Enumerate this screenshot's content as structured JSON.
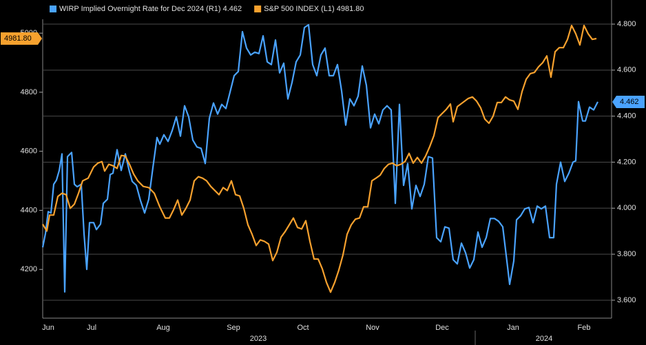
{
  "chart_data": {
    "type": "line",
    "xlim": [
      0,
      826
    ],
    "xticks": [
      {
        "value": 8,
        "label": "Jun"
      },
      {
        "value": 71,
        "label": "Jul"
      },
      {
        "value": 175,
        "label": "Aug"
      },
      {
        "value": 277,
        "label": "Sep"
      },
      {
        "value": 378,
        "label": "Oct"
      },
      {
        "value": 479,
        "label": "Nov"
      },
      {
        "value": 580,
        "label": "Dec"
      },
      {
        "value": 683,
        "label": "Jan"
      },
      {
        "value": 786,
        "label": "Feb"
      }
    ],
    "year_labels": [
      {
        "value": 313,
        "label": "2023"
      },
      {
        "value": 728,
        "label": "2024"
      }
    ],
    "ylim": [
      4035,
      5047
    ],
    "yticks": [
      4200,
      4400,
      4600,
      4800,
      5000
    ],
    "y2lim": [
      3.522,
      4.821
    ],
    "y2ticks": [
      {
        "value": 3.6,
        "label": "3.600"
      },
      {
        "value": 3.8,
        "label": "3.800"
      },
      {
        "value": 4.0,
        "label": "4.000"
      },
      {
        "value": 4.2,
        "label": "4.200"
      },
      {
        "value": 4.4,
        "label": "4.400"
      },
      {
        "value": 4.6,
        "label": "4.600"
      },
      {
        "value": 4.8,
        "label": "4.800"
      }
    ],
    "grid": true,
    "legend": "top-left",
    "series": [
      {
        "name": "WIRP Implied Overnight Rate for Dec 2024 (R1)",
        "last_label": "4.462",
        "color": "#4aa3ff",
        "axis": "y2",
        "x": [
          0,
          4,
          8,
          12,
          16,
          20,
          24,
          28,
          32,
          36,
          42,
          46,
          50,
          56,
          60,
          64,
          68,
          74,
          78,
          84,
          88,
          94,
          98,
          102,
          108,
          114,
          120,
          126,
          130,
          136,
          142,
          148,
          154,
          160,
          166,
          170,
          176,
          182,
          188,
          194,
          200,
          206,
          212,
          218,
          224,
          230,
          236,
          242,
          248,
          254,
          260,
          266,
          272,
          278,
          284,
          290,
          296,
          302,
          308,
          314,
          320,
          326,
          332,
          338,
          344,
          350,
          356,
          362,
          368,
          374,
          380,
          386,
          392,
          398,
          404,
          410,
          416,
          422,
          428,
          434,
          440,
          446,
          452,
          458,
          464,
          470,
          476,
          482,
          488,
          494,
          500,
          506,
          512,
          518,
          524,
          530,
          536,
          542,
          548,
          554,
          560,
          566,
          572,
          578,
          584,
          590,
          596,
          602,
          608,
          614,
          620,
          626,
          632,
          638,
          644,
          650,
          656,
          662,
          668,
          674,
          678,
          684,
          688,
          694,
          700,
          706,
          712,
          718,
          724,
          730,
          736,
          742,
          746,
          752,
          758,
          764,
          770,
          774,
          778,
          784,
          788,
          794,
          800,
          806
        ],
        "values": [
          3.83,
          3.89,
          3.985,
          3.979,
          4.104,
          4.122,
          4.164,
          4.236,
          3.636,
          4.224,
          4.242,
          4.104,
          4.093,
          4.104,
          3.89,
          3.734,
          3.937,
          3.937,
          3.907,
          3.931,
          4.021,
          4.039,
          4.146,
          4.152,
          4.254,
          4.164,
          4.236,
          4.158,
          4.116,
          4.099,
          4.033,
          3.979,
          4.039,
          4.176,
          4.307,
          4.278,
          4.319,
          4.29,
          4.337,
          4.397,
          4.313,
          4.445,
          4.397,
          4.296,
          4.266,
          4.26,
          4.194,
          4.391,
          4.457,
          4.409,
          4.451,
          4.433,
          4.504,
          4.576,
          4.594,
          4.767,
          4.696,
          4.666,
          4.678,
          4.672,
          4.749,
          4.636,
          4.624,
          4.731,
          4.588,
          4.63,
          4.475,
          4.546,
          4.636,
          4.666,
          4.785,
          4.797,
          4.624,
          4.576,
          4.666,
          4.696,
          4.576,
          4.576,
          4.624,
          4.51,
          4.361,
          4.475,
          4.445,
          4.487,
          4.618,
          4.534,
          4.349,
          4.409,
          4.367,
          4.427,
          4.445,
          4.427,
          4.021,
          4.451,
          4.099,
          4.194,
          3.997,
          4.099,
          4.051,
          4.104,
          4.224,
          4.218,
          3.872,
          3.854,
          3.919,
          3.913,
          3.776,
          3.758,
          3.848,
          3.806,
          3.74,
          3.776,
          3.896,
          3.83,
          3.872,
          3.955,
          3.955,
          3.943,
          3.919,
          3.77,
          3.669,
          3.77,
          3.949,
          3.967,
          3.997,
          4.003,
          3.937,
          4.009,
          3.997,
          4.009,
          3.872,
          3.872,
          4.104,
          4.2,
          4.116,
          4.152,
          4.2,
          4.206,
          4.463,
          4.379,
          4.379,
          4.439,
          4.427,
          4.462
        ]
      },
      {
        "name": "S&P 500 INDEX (L1)",
        "last_label": "4981.80",
        "color": "#f7a12e",
        "axis": "y",
        "x": [
          0,
          6,
          10,
          16,
          22,
          28,
          34,
          40,
          46,
          52,
          58,
          66,
          74,
          80,
          86,
          90,
          96,
          102,
          108,
          114,
          120,
          126,
          132,
          138,
          146,
          154,
          162,
          170,
          178,
          184,
          190,
          196,
          202,
          208,
          214,
          220,
          226,
          232,
          238,
          244,
          250,
          256,
          262,
          268,
          274,
          280,
          286,
          292,
          298,
          304,
          310,
          316,
          322,
          328,
          334,
          340,
          346,
          352,
          358,
          364,
          370,
          376,
          382,
          388,
          394,
          400,
          406,
          412,
          418,
          424,
          430,
          436,
          442,
          448,
          454,
          460,
          466,
          472,
          478,
          484,
          490,
          496,
          502,
          508,
          514,
          520,
          526,
          532,
          538,
          544,
          550,
          556,
          562,
          568,
          574,
          580,
          586,
          592,
          596,
          602,
          610,
          618,
          624,
          630,
          636,
          642,
          648,
          654,
          660,
          666,
          672,
          678,
          684,
          690,
          696,
          702,
          708,
          714,
          720,
          726,
          732,
          738,
          744,
          750,
          756,
          762,
          768,
          774,
          780,
          786,
          792,
          798,
          804
        ],
        "values": [
          4353,
          4330,
          4384,
          4384,
          4447,
          4458,
          4453,
          4407,
          4421,
          4458,
          4500,
          4509,
          4547,
          4560,
          4565,
          4533,
          4556,
          4551,
          4542,
          4586,
          4584,
          4556,
          4523,
          4500,
          4481,
          4477,
          4458,
          4412,
          4374,
          4374,
          4402,
          4435,
          4384,
          4407,
          4435,
          4500,
          4514,
          4509,
          4500,
          4481,
          4467,
          4453,
          4477,
          4467,
          4500,
          4453,
          4449,
          4407,
          4351,
          4319,
          4281,
          4300,
          4295,
          4286,
          4230,
          4258,
          4309,
          4328,
          4351,
          4374,
          4342,
          4337,
          4365,
          4295,
          4235,
          4235,
          4202,
          4156,
          4123,
          4156,
          4198,
          4249,
          4319,
          4351,
          4370,
          4374,
          4412,
          4412,
          4500,
          4509,
          4519,
          4542,
          4556,
          4560,
          4551,
          4556,
          4565,
          4593,
          4560,
          4579,
          4560,
          4584,
          4616,
          4653,
          4714,
          4728,
          4742,
          4760,
          4700,
          4751,
          4765,
          4779,
          4784,
          4770,
          4747,
          4709,
          4695,
          4719,
          4765,
          4765,
          4784,
          4774,
          4770,
          4742,
          4802,
          4844,
          4863,
          4867,
          4886,
          4900,
          4923,
          4851,
          4937,
          4951,
          4951,
          4979,
          5026,
          4998,
          4960,
          5026,
          4998,
          4979,
          4981.8
        ]
      }
    ]
  }
}
